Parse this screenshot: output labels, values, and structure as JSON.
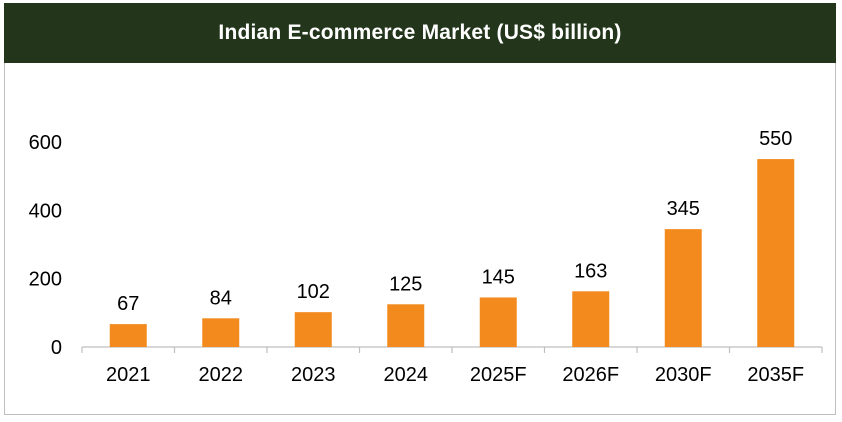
{
  "chart_data": {
    "type": "bar",
    "title": "Indian E-commerce Market (US$ billion)",
    "xlabel": "",
    "ylabel": "",
    "categories": [
      "2021",
      "2022",
      "2023",
      "2024",
      "2025F",
      "2026F",
      "2030F",
      "2035F"
    ],
    "values": [
      67,
      84,
      102,
      125,
      145,
      163,
      345,
      550
    ],
    "data_labels": [
      "67",
      "84",
      "102",
      "125",
      "145",
      "163",
      "345",
      "550"
    ],
    "ylim": [
      0,
      600
    ],
    "yticks": [
      "0",
      "200",
      "400",
      "600"
    ],
    "grid": false,
    "legend": "none",
    "colors": {
      "bar": "#f28a1e",
      "title_background": "#23361c",
      "title_text": "#ffffff"
    }
  }
}
